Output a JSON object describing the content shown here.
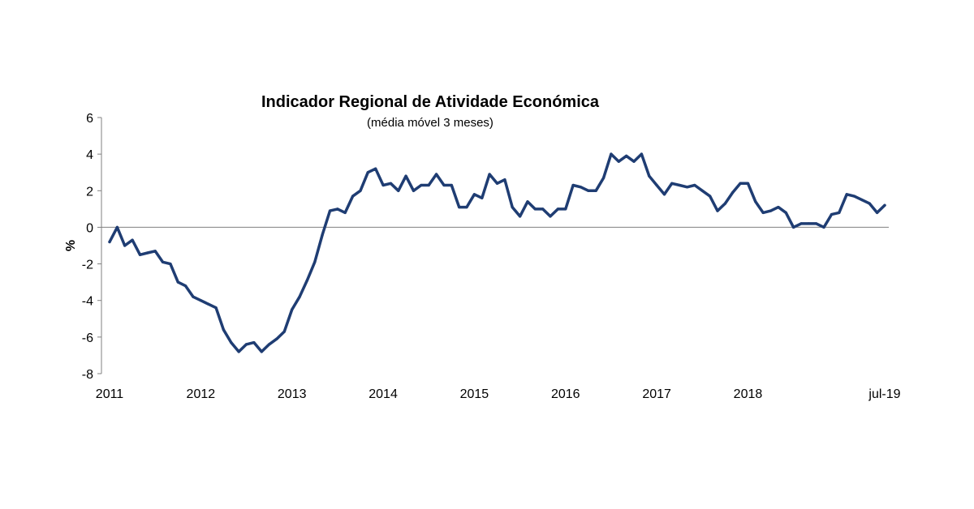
{
  "chart_data": {
    "type": "line",
    "title": "Indicador Regional de Atividade Económica",
    "subtitle": "(média móvel 3 meses)",
    "xlabel": "",
    "ylabel": "%",
    "ylim": [
      -8,
      6
    ],
    "y_ticks": [
      "6",
      "4",
      "2",
      "0",
      "-2",
      "-4",
      "-6",
      "-8"
    ],
    "x_ticks": [
      "2011",
      "2012",
      "2013",
      "2014",
      "2015",
      "2016",
      "2017",
      "2018",
      "jul-19"
    ],
    "grid": false,
    "legend": "none",
    "line_color": "#1f3d73",
    "x": [
      "jan-11",
      "fev-11",
      "mar-11",
      "abr-11",
      "mai-11",
      "jun-11",
      "jul-11",
      "ago-11",
      "set-11",
      "out-11",
      "nov-11",
      "dez-11",
      "jan-12",
      "fev-12",
      "mar-12",
      "abr-12",
      "mai-12",
      "jun-12",
      "jul-12",
      "ago-12",
      "set-12",
      "out-12",
      "nov-12",
      "dez-12",
      "jan-13",
      "fev-13",
      "mar-13",
      "abr-13",
      "mai-13",
      "jun-13",
      "jul-13",
      "ago-13",
      "set-13",
      "out-13",
      "nov-13",
      "dez-13",
      "jan-14",
      "fev-14",
      "mar-14",
      "abr-14",
      "mai-14",
      "jun-14",
      "jul-14",
      "ago-14",
      "set-14",
      "out-14",
      "nov-14",
      "dez-14",
      "jan-15",
      "fev-15",
      "mar-15",
      "abr-15",
      "mai-15",
      "jun-15",
      "jul-15",
      "ago-15",
      "set-15",
      "out-15",
      "nov-15",
      "dez-15",
      "jan-16",
      "fev-16",
      "mar-16",
      "abr-16",
      "mai-16",
      "jun-16",
      "jul-16",
      "ago-16",
      "set-16",
      "out-16",
      "nov-16",
      "dez-16",
      "jan-17",
      "fev-17",
      "mar-17",
      "abr-17",
      "mai-17",
      "jun-17",
      "jul-17",
      "ago-17",
      "set-17",
      "out-17",
      "nov-17",
      "dez-17",
      "jan-18",
      "fev-18",
      "mar-18",
      "abr-18",
      "mai-18",
      "jun-18",
      "jul-18",
      "ago-18",
      "set-18",
      "out-18",
      "nov-18",
      "dez-18",
      "jan-19",
      "fev-19",
      "mar-19",
      "abr-19",
      "mai-19",
      "jun-19",
      "jul-19"
    ],
    "series": [
      {
        "values": [
          -0.8,
          0.0,
          -1.0,
          -0.7,
          -1.5,
          -1.4,
          -1.3,
          -1.9,
          -2.0,
          -3.0,
          -3.2,
          -3.8,
          -4.0,
          -4.2,
          -4.4,
          -5.6,
          -6.3,
          -6.8,
          -6.4,
          -6.3,
          -6.8,
          -6.4,
          -6.1,
          -5.7,
          -4.5,
          -3.8,
          -2.9,
          -1.9,
          -0.4,
          0.9,
          1.0,
          0.8,
          1.7,
          2.0,
          3.0,
          3.2,
          2.3,
          2.4,
          2.0,
          2.8,
          2.0,
          2.3,
          2.3,
          2.9,
          2.3,
          2.3,
          1.1,
          1.1,
          1.8,
          1.6,
          2.9,
          2.4,
          2.6,
          1.1,
          0.6,
          1.4,
          1.0,
          1.0,
          0.6,
          1.0,
          1.0,
          2.3,
          2.2,
          2.0,
          2.0,
          2.7,
          4.0,
          3.6,
          3.9,
          3.6,
          4.0,
          2.8,
          2.3,
          1.8,
          2.4,
          2.3,
          2.2,
          2.3,
          2.0,
          1.7,
          0.9,
          1.3,
          1.9,
          2.4,
          2.4,
          1.4,
          0.8,
          0.9,
          1.1,
          0.8,
          0.0,
          0.2,
          0.2,
          0.2,
          0.0,
          0.7,
          0.8,
          1.8,
          1.7,
          1.5,
          1.3,
          0.8,
          1.2
        ]
      }
    ]
  }
}
